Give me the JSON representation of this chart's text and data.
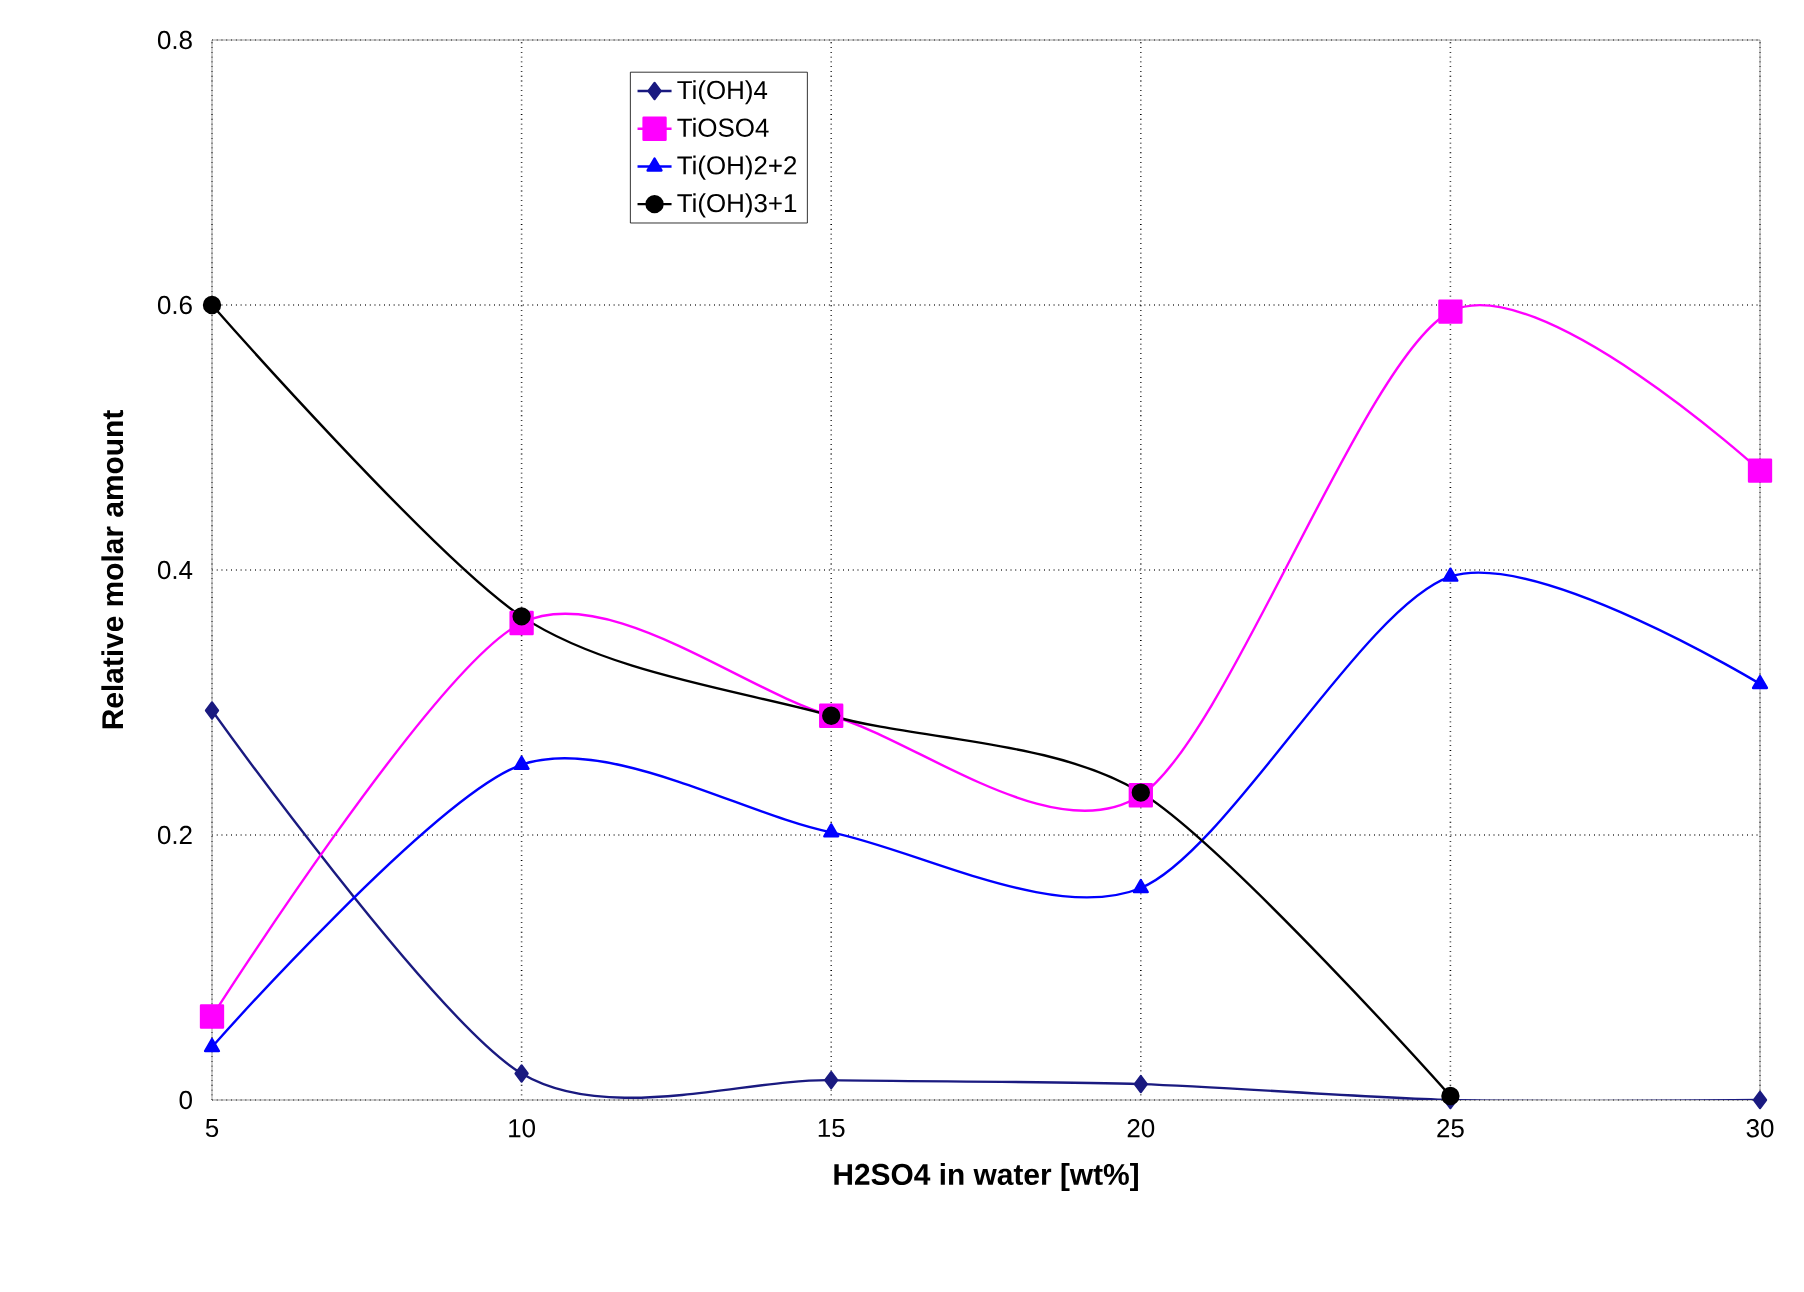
{
  "chart_data": {
    "type": "line",
    "xlabel": "H2SO4 in water [wt%]",
    "ylabel": "Relative molar amount",
    "x": [
      5,
      10,
      15,
      20,
      25,
      30
    ],
    "series": [
      {
        "name": "Ti(OH)4",
        "color": "#1a1a80",
        "marker": "diamond",
        "values": [
          0.294,
          0.02,
          0.015,
          0.012,
          0,
          0
        ]
      },
      {
        "name": "TiOSO4",
        "color": "#ff00ff",
        "marker": "square",
        "values": [
          0.063,
          0.36,
          0.29,
          0.23,
          0.595,
          0.475
        ]
      },
      {
        "name": "Ti(OH)2+2",
        "color": "#0000ff",
        "marker": "triangle",
        "values": [
          0.04,
          0.253,
          0.202,
          0.16,
          0.395,
          0.314
        ]
      },
      {
        "name": "Ti(OH)3+1",
        "color": "#000000",
        "marker": "circle",
        "values": [
          0.6,
          0.365,
          0.29,
          0.232,
          0.003,
          null
        ]
      }
    ],
    "xlim": [
      5,
      30
    ],
    "xticks": [
      5,
      10,
      15,
      20,
      25,
      30
    ],
    "ylim": [
      0,
      0.8
    ],
    "yticks": [
      0,
      0.2,
      0.4,
      0.6,
      0.8
    ],
    "grid": true,
    "legend": "top",
    "line_style": "solid"
  }
}
